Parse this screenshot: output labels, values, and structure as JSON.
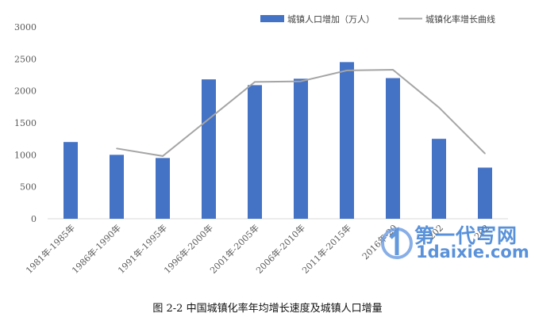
{
  "chart_data": {
    "type": "bar",
    "categories": [
      "1981年-1985年",
      "1986年-1990年",
      "1991年-1995年",
      "1996年-2000年",
      "2001年-2005年",
      "2006年-2010年",
      "2011年-2015年",
      "2016年-2020年",
      "2021年-2025年",
      "2026年-2030年"
    ],
    "category_labels_visible": [
      "1981年-1985年",
      "1986年-1990年",
      "1991年-1995年",
      "1996年-2000年",
      "2001年-2005年",
      "2006年-2010年",
      "2011年-2015年",
      "2016年-20",
      "202",
      "202"
    ],
    "series": [
      {
        "name": "城镇人口增加（万人）",
        "type": "bar",
        "color": "#4472c4",
        "values": [
          1200,
          1000,
          950,
          2180,
          2090,
          2190,
          2450,
          2200,
          1250,
          800
        ]
      },
      {
        "name": "城镇化率增长曲线",
        "type": "line",
        "color": "#a5a5a5",
        "values": [
          null,
          1100,
          980,
          1560,
          2140,
          2150,
          2320,
          2330,
          1740,
          1020
        ]
      }
    ],
    "ylim": [
      0,
      3000
    ],
    "yticks": [
      "0",
      "500",
      "1000",
      "1500",
      "2000",
      "2500",
      "3000"
    ],
    "grid": false,
    "legend": "top-right"
  },
  "caption": "图 2-2  中国城镇化率年均增长速度及城镇人口增量",
  "watermark": {
    "cn": "第一代写网",
    "en": "1daixie.com"
  }
}
